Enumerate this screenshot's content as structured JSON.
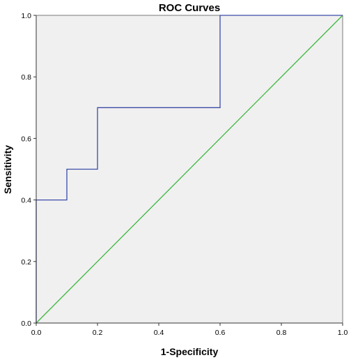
{
  "chart_data": {
    "type": "line",
    "title": "ROC Curves",
    "xlabel": "1-Specificity",
    "ylabel": "Sensitivity",
    "xlim": [
      0,
      1
    ],
    "ylim": [
      0,
      1
    ],
    "xticks": [
      "0.0",
      "0.2",
      "0.4",
      "0.6",
      "0.8",
      "1.0"
    ],
    "yticks": [
      "0.0",
      "0.2",
      "0.4",
      "0.6",
      "0.8",
      "1.0"
    ],
    "grid": false,
    "plot_background": "#f0f0f0",
    "series": [
      {
        "style": "step",
        "color": "#3b4ba8",
        "x": [
          0.0,
          0.0,
          0.1,
          0.1,
          0.2,
          0.2,
          0.6,
          0.6,
          1.0
        ],
        "y": [
          0.0,
          0.4,
          0.4,
          0.5,
          0.5,
          0.7,
          0.7,
          1.0,
          1.0
        ]
      },
      {
        "style": "reference",
        "color": "#3cb83c",
        "x": [
          0.0,
          1.0
        ],
        "y": [
          0.0,
          1.0
        ]
      }
    ]
  }
}
